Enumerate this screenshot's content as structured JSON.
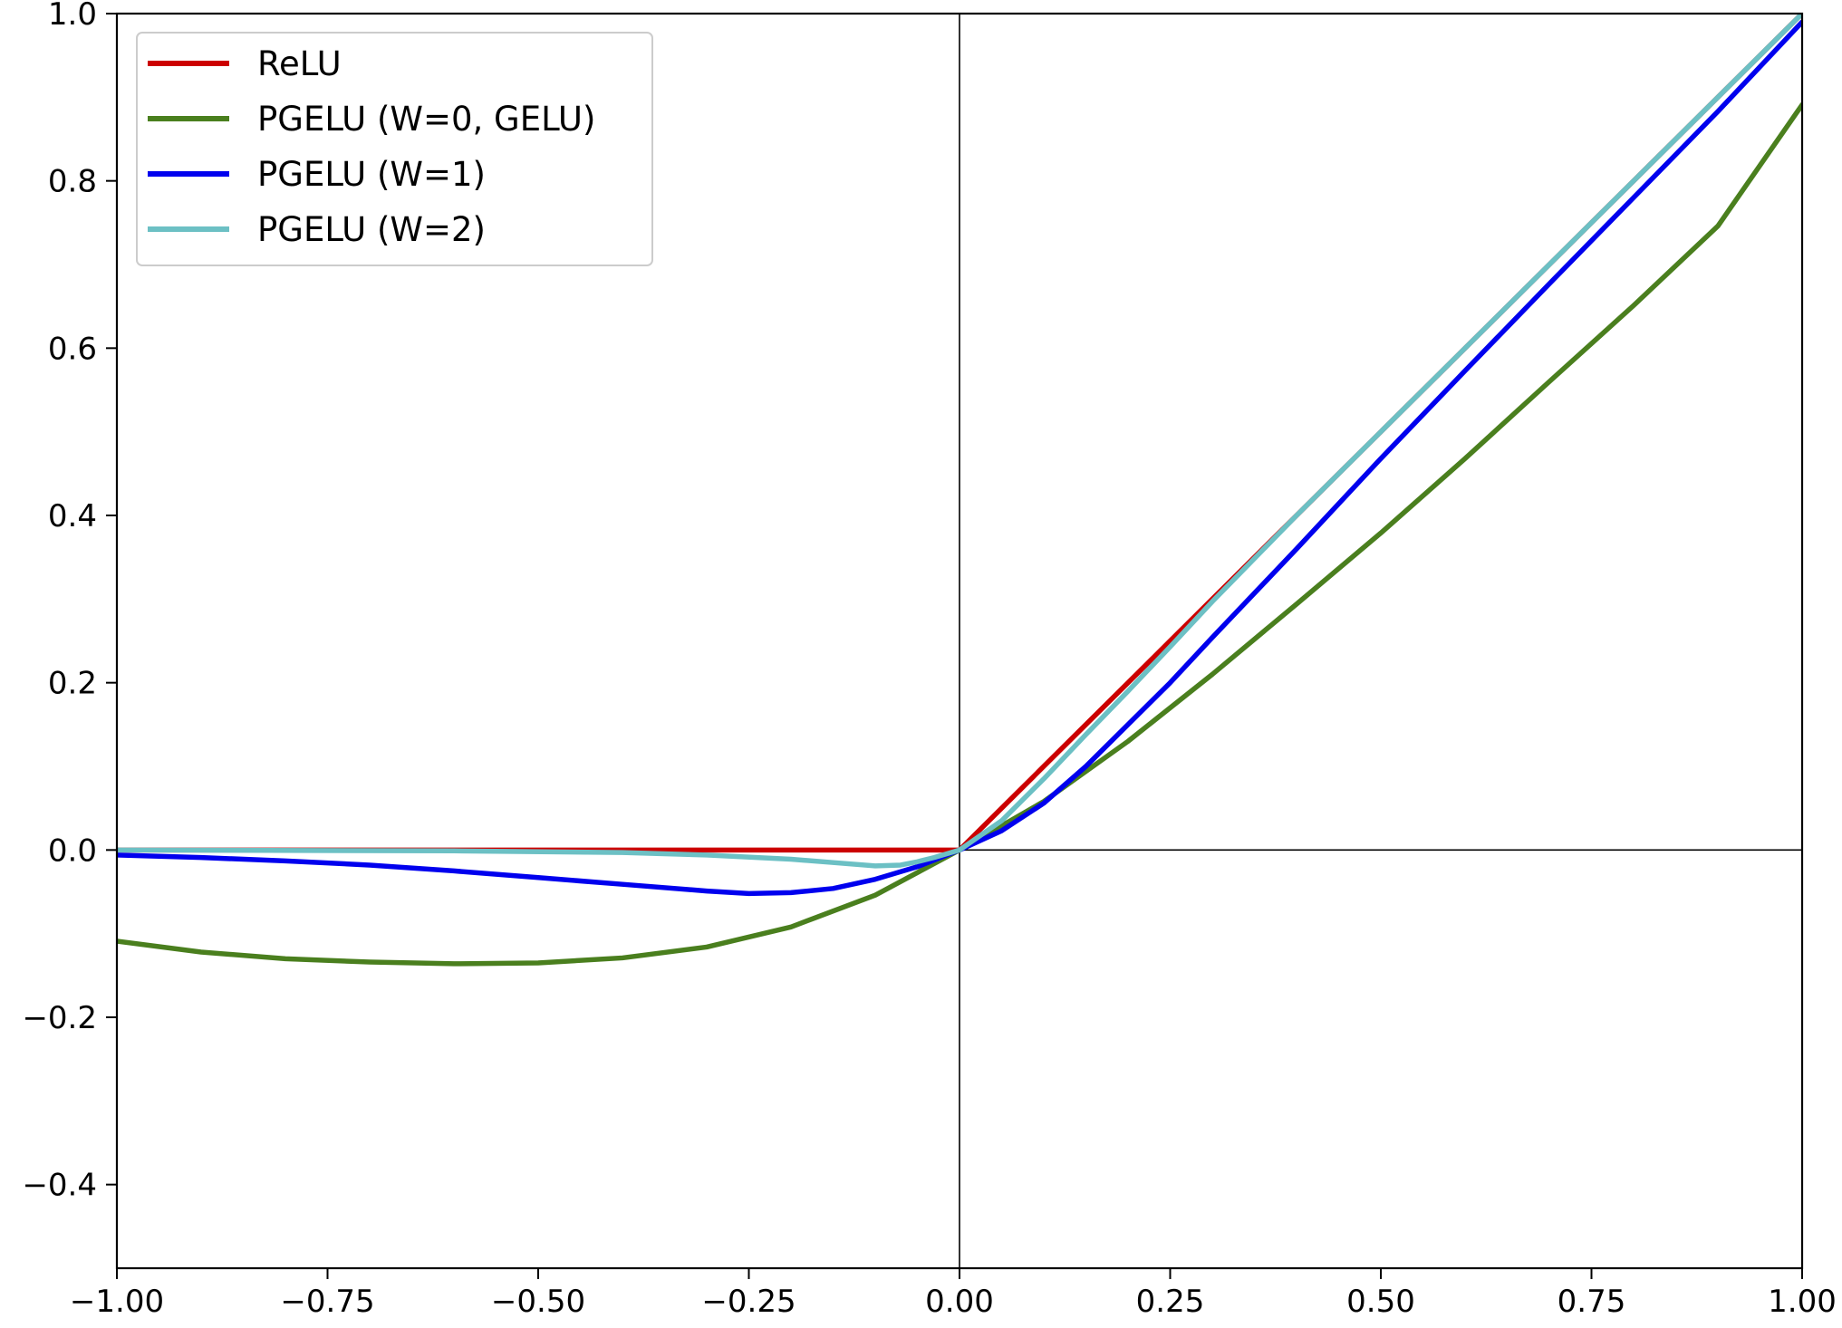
{
  "chart_data": {
    "type": "line",
    "title": "",
    "xlabel": "",
    "ylabel": "",
    "xlim": [
      -1.0,
      1.0
    ],
    "ylim": [
      -0.5,
      1.0
    ],
    "x_ticks": [
      -1.0,
      -0.75,
      -0.5,
      -0.25,
      0.0,
      0.25,
      0.5,
      0.75,
      1.0
    ],
    "x_tick_labels": [
      "−1.00",
      "−0.75",
      "−0.50",
      "−0.25",
      "0.00",
      "0.25",
      "0.50",
      "0.75",
      "1.00"
    ],
    "y_ticks": [
      -0.4,
      -0.2,
      0.0,
      0.2,
      0.4,
      0.6,
      0.8,
      1.0
    ],
    "y_tick_labels": [
      "−0.4",
      "−0.2",
      "0.0",
      "0.2",
      "0.4",
      "0.6",
      "0.8",
      "1.0"
    ],
    "grid": false,
    "reference_lines": {
      "x": 0.0,
      "y": 0.0
    },
    "legend_position": "upper-left",
    "series": [
      {
        "name": "ReLU",
        "color": "#cc0000",
        "x": [
          -1.0,
          -0.5,
          0.0,
          0.25,
          0.5,
          0.75,
          1.0
        ],
        "y": [
          0.0,
          0.0,
          0.0,
          0.25,
          0.5,
          0.75,
          1.0
        ]
      },
      {
        "name": "PGELU (W=0, GELU)",
        "color": "#4a7f1e",
        "x": [
          -1.0,
          -0.9,
          -0.8,
          -0.7,
          -0.6,
          -0.5,
          -0.4,
          -0.3,
          -0.2,
          -0.1,
          0.0,
          0.1,
          0.2,
          0.3,
          0.4,
          0.5,
          0.6,
          0.7,
          0.8,
          0.9,
          1.0
        ],
        "y": [
          -0.109,
          -0.122,
          -0.13,
          -0.134,
          -0.136,
          -0.135,
          -0.129,
          -0.116,
          -0.092,
          -0.054,
          0.0,
          0.058,
          0.13,
          0.21,
          0.294,
          0.379,
          0.468,
          0.56,
          0.651,
          0.746,
          0.891
        ]
      },
      {
        "name": "PGELU (W=1)",
        "color": "#0000ee",
        "x": [
          -1.0,
          -0.9,
          -0.8,
          -0.7,
          -0.6,
          -0.5,
          -0.4,
          -0.3,
          -0.25,
          -0.2,
          -0.15,
          -0.1,
          -0.05,
          0.0,
          0.05,
          0.1,
          0.15,
          0.2,
          0.25,
          0.3,
          0.4,
          0.5,
          0.6,
          0.7,
          0.8,
          0.9,
          1.0
        ],
        "y": [
          -0.006,
          -0.009,
          -0.013,
          -0.018,
          -0.025,
          -0.033,
          -0.041,
          -0.049,
          -0.052,
          -0.051,
          -0.046,
          -0.035,
          -0.02,
          0.0,
          0.023,
          0.056,
          0.1,
          0.15,
          0.2,
          0.254,
          0.36,
          0.468,
          0.573,
          0.677,
          0.78,
          0.883,
          0.99
        ]
      },
      {
        "name": "PGELU (W=2)",
        "color": "#6cc0c4",
        "x": [
          -1.0,
          -0.6,
          -0.4,
          -0.3,
          -0.2,
          -0.15,
          -0.1,
          -0.07,
          -0.05,
          -0.03,
          0.0,
          0.05,
          0.1,
          0.15,
          0.2,
          0.25,
          0.3,
          0.4,
          0.5,
          0.6,
          0.7,
          0.8,
          0.9,
          1.0
        ],
        "y": [
          0.0,
          -0.001,
          -0.003,
          -0.006,
          -0.011,
          -0.015,
          -0.019,
          -0.018,
          -0.014,
          -0.009,
          0.0,
          0.035,
          0.085,
          0.138,
          0.19,
          0.243,
          0.297,
          0.4,
          0.5,
          0.6,
          0.7,
          0.8,
          0.9,
          1.0
        ]
      }
    ]
  }
}
